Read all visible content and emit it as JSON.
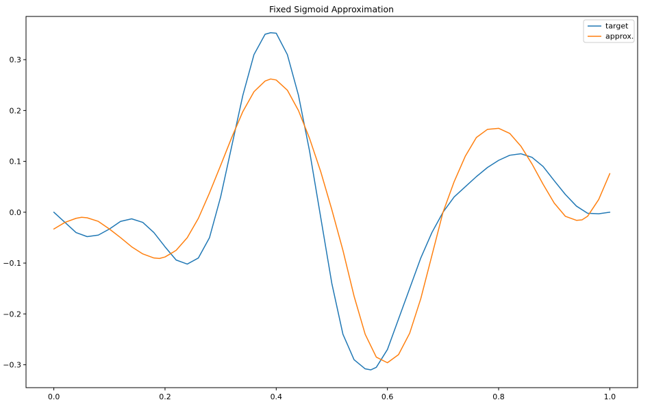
{
  "chart_data": {
    "type": "line",
    "title": "Fixed Sigmoid Approximation",
    "xlabel": "",
    "ylabel": "",
    "xlim": [
      -0.05,
      1.05
    ],
    "ylim": [
      -0.345,
      0.385
    ],
    "xticks": [
      0.0,
      0.2,
      0.4,
      0.6,
      0.8,
      1.0
    ],
    "xtick_labels": [
      "0.0",
      "0.2",
      "0.4",
      "0.6",
      "0.8",
      "1.0"
    ],
    "yticks": [
      -0.3,
      -0.2,
      -0.1,
      0.0,
      0.1,
      0.2,
      0.3
    ],
    "ytick_labels": [
      "−0.3",
      "−0.2",
      "−0.1",
      "0.0",
      "0.1",
      "0.2",
      "0.3"
    ],
    "grid": false,
    "legend": "top-right",
    "series": [
      {
        "name": "target",
        "color": "#1f77b4",
        "x": [
          0.0,
          0.02,
          0.04,
          0.06,
          0.08,
          0.1,
          0.12,
          0.14,
          0.16,
          0.18,
          0.2,
          0.22,
          0.24,
          0.26,
          0.28,
          0.3,
          0.32,
          0.34,
          0.36,
          0.38,
          0.39,
          0.4,
          0.42,
          0.44,
          0.46,
          0.48,
          0.5,
          0.52,
          0.54,
          0.56,
          0.57,
          0.58,
          0.6,
          0.62,
          0.64,
          0.66,
          0.68,
          0.7,
          0.72,
          0.74,
          0.76,
          0.78,
          0.8,
          0.82,
          0.84,
          0.86,
          0.88,
          0.9,
          0.92,
          0.94,
          0.96,
          0.98,
          1.0
        ],
        "y": [
          0.0,
          -0.02,
          -0.04,
          -0.048,
          -0.045,
          -0.033,
          -0.018,
          -0.013,
          -0.02,
          -0.04,
          -0.068,
          -0.094,
          -0.102,
          -0.09,
          -0.05,
          0.03,
          0.13,
          0.23,
          0.31,
          0.35,
          0.353,
          0.352,
          0.31,
          0.23,
          0.12,
          -0.01,
          -0.14,
          -0.24,
          -0.29,
          -0.308,
          -0.31,
          -0.305,
          -0.27,
          -0.21,
          -0.15,
          -0.09,
          -0.04,
          0.0,
          0.03,
          0.05,
          0.07,
          0.088,
          0.102,
          0.112,
          0.115,
          0.108,
          0.09,
          0.062,
          0.035,
          0.012,
          -0.002,
          -0.003,
          0.0
        ]
      },
      {
        "name": "approx.",
        "color": "#ff7f0e",
        "x": [
          0.0,
          0.02,
          0.04,
          0.05,
          0.06,
          0.08,
          0.1,
          0.12,
          0.14,
          0.16,
          0.18,
          0.19,
          0.2,
          0.22,
          0.24,
          0.26,
          0.28,
          0.3,
          0.32,
          0.34,
          0.36,
          0.38,
          0.39,
          0.4,
          0.42,
          0.44,
          0.46,
          0.48,
          0.5,
          0.52,
          0.54,
          0.56,
          0.58,
          0.6,
          0.62,
          0.64,
          0.66,
          0.68,
          0.7,
          0.72,
          0.74,
          0.76,
          0.78,
          0.8,
          0.82,
          0.84,
          0.86,
          0.88,
          0.9,
          0.92,
          0.94,
          0.95,
          0.96,
          0.98,
          1.0
        ],
        "y": [
          -0.033,
          -0.02,
          -0.012,
          -0.01,
          -0.011,
          -0.018,
          -0.033,
          -0.05,
          -0.068,
          -0.082,
          -0.09,
          -0.091,
          -0.088,
          -0.075,
          -0.05,
          -0.012,
          0.038,
          0.092,
          0.147,
          0.198,
          0.237,
          0.258,
          0.262,
          0.26,
          0.24,
          0.2,
          0.145,
          0.08,
          0.005,
          -0.075,
          -0.165,
          -0.24,
          -0.285,
          -0.296,
          -0.28,
          -0.238,
          -0.17,
          -0.085,
          0.0,
          0.06,
          0.11,
          0.147,
          0.163,
          0.165,
          0.155,
          0.13,
          0.095,
          0.055,
          0.018,
          -0.008,
          -0.016,
          -0.015,
          -0.008,
          0.025,
          0.076
        ]
      }
    ]
  }
}
